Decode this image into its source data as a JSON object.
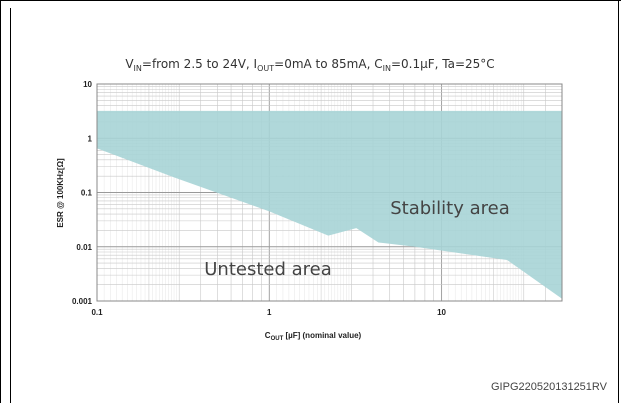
{
  "chart_data": {
    "type": "area",
    "title_parts": {
      "p1": "V",
      "s1": "IN",
      "p2": "=from 2.5 to 24V, I",
      "s2": "OUT",
      "p3": "=0mA to 85mA, C",
      "s3": "IN",
      "p4": "=0.1µF, Ta=25°C"
    },
    "xlabel_parts": {
      "p1": "C",
      "s1": "OUT",
      "p2": " [µF] (nominal value)"
    },
    "ylabel": "ESR @ 100KHz[Ω]",
    "xscale": "log",
    "yscale": "log",
    "xlim": [
      0.1,
      50
    ],
    "ylim": [
      0.001,
      10
    ],
    "xticks": [
      0.1,
      1,
      10
    ],
    "xtick_labels": [
      "0.1",
      "1",
      "10"
    ],
    "yticks": [
      10,
      1,
      0.1,
      0.01,
      0.001
    ],
    "ytick_labels": [
      "10",
      "1",
      "0.1",
      "0.01",
      "0.001"
    ],
    "grid": true,
    "stability_region": {
      "upper_x": [
        0.1,
        50
      ],
      "upper_y": [
        3.2,
        3.2
      ],
      "lower_x": [
        0.1,
        0.28,
        1,
        2.2,
        3.2,
        4.3,
        7,
        24,
        50
      ],
      "lower_y": [
        0.65,
        0.19,
        0.045,
        0.016,
        0.022,
        0.012,
        0.01,
        0.0057,
        0.0011
      ],
      "color": "#a7d4d6"
    },
    "annotations": {
      "stability": "Stability area",
      "untested": "Untested area"
    }
  },
  "figure_id": "GIPG220520131251RV"
}
